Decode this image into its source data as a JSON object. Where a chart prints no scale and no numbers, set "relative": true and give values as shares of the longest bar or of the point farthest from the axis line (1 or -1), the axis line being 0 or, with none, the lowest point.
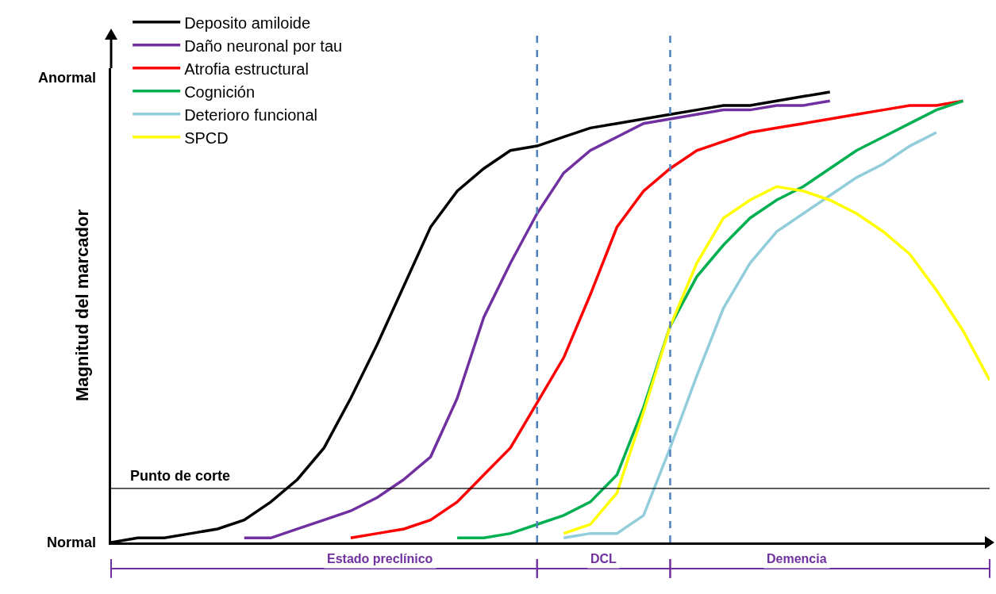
{
  "chart_data": {
    "type": "line",
    "relative": true,
    "ylabel": "Magnitud del marcador",
    "legend": "top left",
    "categories": [
      null,
      null,
      null,
      null,
      null,
      null,
      null,
      null,
      null,
      null,
      null,
      null,
      null,
      null,
      null,
      null,
      null,
      null,
      null,
      null,
      null,
      null,
      null,
      null,
      null,
      null,
      null,
      null,
      null,
      null,
      null,
      null,
      null,
      null
    ],
    "series": [
      {
        "name": "Deposito amiloide",
        "color": "#000000",
        "values": [
          0.0,
          0.01,
          0.01,
          0.02,
          0.03,
          0.05,
          0.09,
          0.14,
          0.21,
          0.32,
          0.44,
          0.57,
          0.7,
          0.78,
          0.83,
          0.87,
          0.88,
          0.9,
          0.92,
          0.93,
          0.94,
          0.95,
          0.96,
          0.97,
          0.97,
          0.98,
          0.99,
          1.0,
          null,
          null,
          null,
          null,
          null,
          null
        ]
      },
      {
        "name": "Daño neuronal por tau",
        "color": "#7030a0",
        "values": [
          null,
          null,
          null,
          null,
          null,
          0.01,
          0.01,
          0.03,
          0.05,
          0.07,
          0.1,
          0.14,
          0.19,
          0.32,
          0.5,
          0.62,
          0.73,
          0.82,
          0.87,
          0.9,
          0.93,
          0.94,
          0.95,
          0.96,
          0.96,
          0.97,
          0.97,
          0.98,
          null,
          null,
          null,
          null,
          null,
          null
        ]
      },
      {
        "name": "Atrofia estructural",
        "color": "#ff0000",
        "values": [
          null,
          null,
          null,
          null,
          null,
          null,
          null,
          null,
          null,
          0.01,
          0.02,
          0.03,
          0.05,
          0.09,
          0.15,
          0.21,
          0.31,
          0.41,
          0.55,
          0.7,
          0.78,
          0.83,
          0.87,
          0.89,
          0.91,
          0.92,
          0.93,
          0.94,
          0.95,
          0.96,
          0.97,
          0.97,
          0.98,
          null
        ]
      },
      {
        "name": "Cognición",
        "color": "#00b050",
        "values": [
          null,
          null,
          null,
          null,
          null,
          null,
          null,
          null,
          null,
          null,
          null,
          null,
          null,
          0.01,
          0.01,
          0.02,
          0.04,
          0.06,
          0.09,
          0.15,
          0.3,
          0.48,
          0.59,
          0.66,
          0.72,
          0.76,
          0.79,
          0.83,
          0.87,
          0.9,
          0.93,
          0.96,
          0.98,
          null
        ]
      },
      {
        "name": "Deterioro funcional",
        "color": "#92cddc",
        "values": [
          null,
          null,
          null,
          null,
          null,
          null,
          null,
          null,
          null,
          null,
          null,
          null,
          null,
          null,
          null,
          null,
          null,
          0.01,
          0.02,
          0.02,
          0.06,
          0.21,
          0.37,
          0.52,
          0.62,
          0.69,
          0.73,
          0.77,
          0.81,
          0.84,
          0.88,
          0.91,
          null,
          null
        ]
      },
      {
        "name": "SPCD",
        "color": "#ffff00",
        "values": [
          null,
          null,
          null,
          null,
          null,
          null,
          null,
          null,
          null,
          null,
          null,
          null,
          null,
          null,
          null,
          null,
          null,
          0.02,
          0.04,
          0.11,
          0.29,
          0.48,
          0.62,
          0.72,
          0.76,
          0.79,
          0.78,
          0.76,
          0.73,
          0.69,
          0.64,
          0.56,
          0.47,
          0.36
        ]
      }
    ],
    "ref_lines": [
      {
        "axis": "y",
        "value": 0.12,
        "label": "Punto de corte",
        "color": "#000000",
        "line_style": "solid"
      }
    ],
    "annotations": [
      "Normal",
      "Anormal",
      "Estado preclínico",
      "DCL",
      "Demencia"
    ]
  }
}
